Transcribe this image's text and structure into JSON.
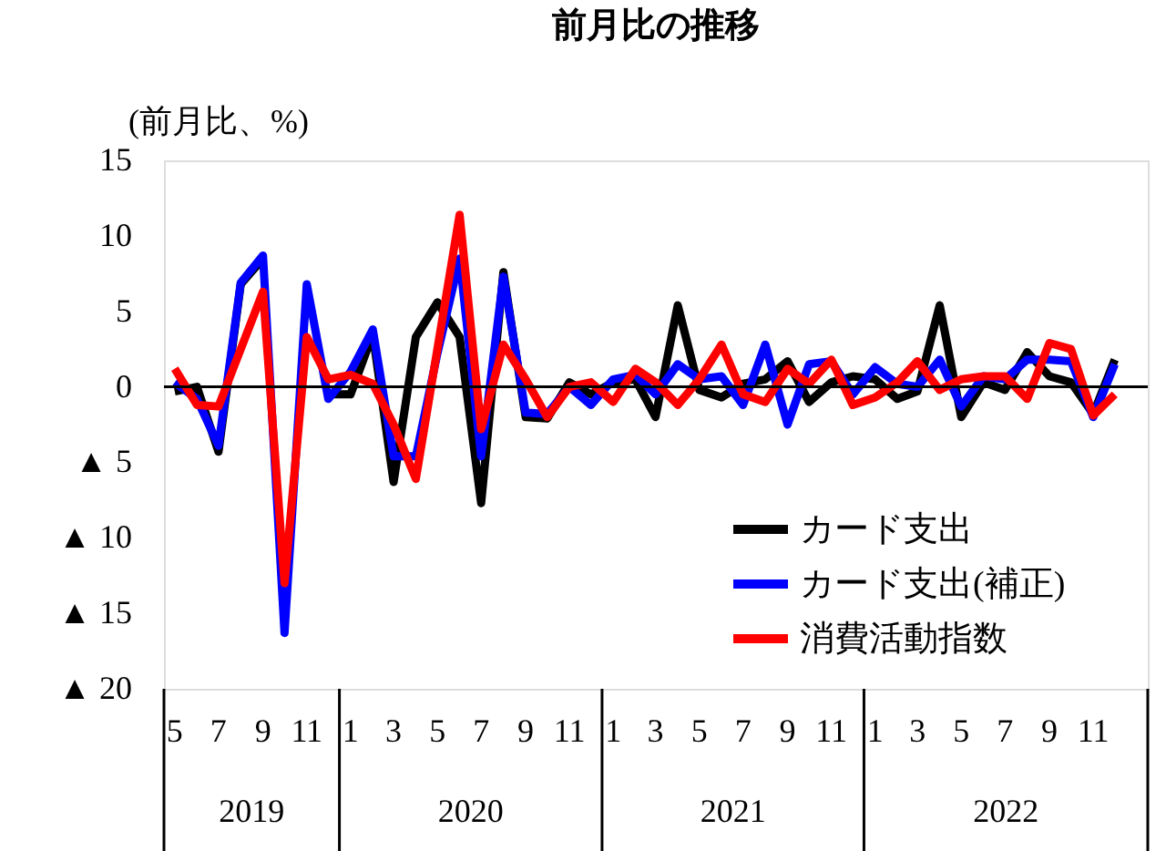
{
  "chart_data": {
    "type": "line",
    "title": "前月比の推移",
    "ylabel": "(前月比、%)",
    "x": [
      "2019-05",
      "2019-06",
      "2019-07",
      "2019-08",
      "2019-09",
      "2019-10",
      "2019-11",
      "2019-12",
      "2020-01",
      "2020-02",
      "2020-03",
      "2020-04",
      "2020-05",
      "2020-06",
      "2020-07",
      "2020-08",
      "2020-09",
      "2020-10",
      "2020-11",
      "2020-12",
      "2021-01",
      "2021-02",
      "2021-03",
      "2021-04",
      "2021-05",
      "2021-06",
      "2021-07",
      "2021-08",
      "2021-09",
      "2021-10",
      "2021-11",
      "2021-12",
      "2022-01",
      "2022-02",
      "2022-03",
      "2022-04",
      "2022-05",
      "2022-06",
      "2022-07",
      "2022-08",
      "2022-09",
      "2022-10",
      "2022-11",
      "2022-12"
    ],
    "series": [
      {
        "name": "カード支出",
        "color": "#000000",
        "values": [
          -0.3,
          0,
          -4.3,
          6.8,
          8.5,
          null,
          null,
          -0.5,
          -0.5,
          3.5,
          -6.3,
          3.3,
          5.6,
          3.3,
          -7.7,
          7.6,
          -2.0,
          -2.1,
          0.3,
          -0.5,
          0.3,
          0.5,
          -2.0,
          5.4,
          -0.2,
          -0.7,
          0.2,
          0.5,
          1.7,
          -1.0,
          0.3,
          0.7,
          0.5,
          -0.8,
          -0.3,
          5.4,
          -2.0,
          0.3,
          -0.2,
          2.3,
          0.7,
          0.3,
          -1.8,
          1.8
        ]
      },
      {
        "name": "カード支出(補正)",
        "color": "#0000ff",
        "values": [
          0.3,
          -0.8,
          -3.9,
          6.9,
          8.7,
          -16.3,
          6.8,
          -0.8,
          1.0,
          3.8,
          -4.6,
          -4.6,
          2.2,
          8.5,
          -4.6,
          7.3,
          -1.7,
          -1.8,
          0,
          -1.2,
          0.5,
          0.8,
          -0.5,
          1.5,
          0.5,
          0.7,
          -1.2,
          2.8,
          -2.5,
          1.5,
          1.7,
          -0.5,
          1.3,
          0.2,
          0,
          1.8,
          -1.3,
          0.7,
          0.5,
          1.8,
          1.8,
          1.7,
          -2.0,
          1.5
        ]
      },
      {
        "name": "消費活動指数",
        "color": "#ff0000",
        "values": [
          1.2,
          -1.2,
          -1.3,
          2.5,
          6.3,
          -13,
          3.3,
          0.5,
          0.8,
          0.2,
          -2.5,
          -6.1,
          2.5,
          11.4,
          -2.8,
          2.8,
          0.5,
          -2.0,
          0,
          0.3,
          -1.0,
          1.2,
          0.3,
          -1.2,
          0.5,
          2.8,
          -0.5,
          -1.0,
          1.2,
          0.2,
          1.8,
          -1.2,
          -0.7,
          0.3,
          1.7,
          -0.2,
          0.5,
          0.7,
          0.7,
          -0.8,
          2.9,
          2.5,
          -1.9,
          -0.5
        ]
      }
    ],
    "ylim": [
      -20,
      15
    ],
    "yticks": [
      {
        "value": 15,
        "label": "15"
      },
      {
        "value": 10,
        "label": "10"
      },
      {
        "value": 5,
        "label": "5"
      },
      {
        "value": 0,
        "label": "0"
      },
      {
        "value": -5,
        "label": "▲ 5"
      },
      {
        "value": -10,
        "label": "▲ 10"
      },
      {
        "value": -15,
        "label": "▲ 15"
      },
      {
        "value": -20,
        "label": "▲ 20"
      }
    ],
    "xlim": [
      "2019-04-16",
      "2023-01-16"
    ],
    "xticks": [
      {
        "value": "2019-05",
        "label": "5"
      },
      {
        "value": "2019-07",
        "label": "7"
      },
      {
        "value": "2019-09",
        "label": "9"
      },
      {
        "value": "2019-11",
        "label": "11"
      },
      {
        "value": "2020-01",
        "label": "1"
      },
      {
        "value": "2020-03",
        "label": "3"
      },
      {
        "value": "2020-05",
        "label": "5"
      },
      {
        "value": "2020-07",
        "label": "7"
      },
      {
        "value": "2020-09",
        "label": "9"
      },
      {
        "value": "2020-11",
        "label": "11"
      },
      {
        "value": "2021-01",
        "label": "1"
      },
      {
        "value": "2021-03",
        "label": "3"
      },
      {
        "value": "2021-05",
        "label": "5"
      },
      {
        "value": "2021-07",
        "label": "7"
      },
      {
        "value": "2021-09",
        "label": "9"
      },
      {
        "value": "2021-11",
        "label": "11"
      },
      {
        "value": "2022-01",
        "label": "1"
      },
      {
        "value": "2022-03",
        "label": "3"
      },
      {
        "value": "2022-05",
        "label": "5"
      },
      {
        "value": "2022-07",
        "label": "7"
      },
      {
        "value": "2022-09",
        "label": "9"
      },
      {
        "value": "2022-11",
        "label": "11"
      }
    ],
    "annotations": [
      "2019",
      "2020",
      "2021",
      "2022"
    ],
    "ref_lines": [
      {
        "axis": "y",
        "value": 0,
        "color": "#000000"
      }
    ],
    "grid": false,
    "legend": "bottom right",
    "marker": "none",
    "line_style": "solid"
  }
}
